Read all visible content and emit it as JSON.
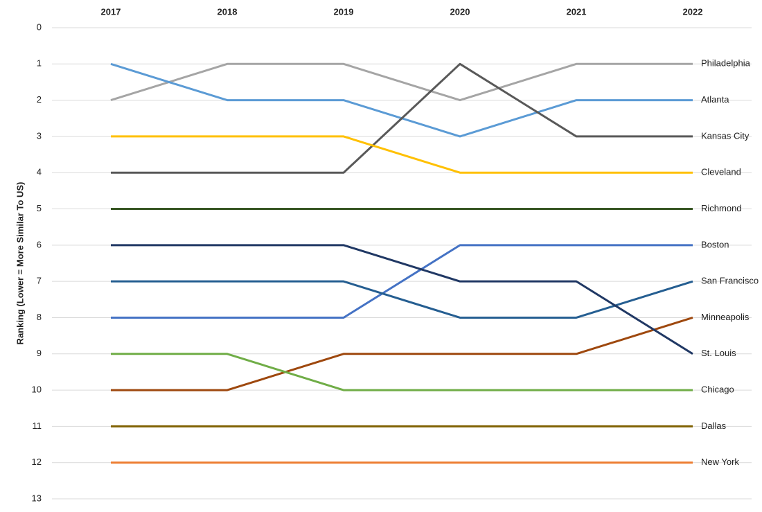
{
  "chart_data": {
    "type": "line",
    "y_label": "Ranking (Lower = More Similar To US)",
    "categories": [
      "2017",
      "2018",
      "2019",
      "2020",
      "2021",
      "2022"
    ],
    "series": [
      {
        "name": "Philadelphia",
        "color": "#a5a5a5",
        "values": [
          2,
          1,
          1,
          2,
          1,
          1
        ]
      },
      {
        "name": "Atlanta",
        "color": "#5b9bd5",
        "values": [
          1,
          2,
          2,
          3,
          2,
          2
        ]
      },
      {
        "name": "Kansas City",
        "color": "#595959",
        "values": [
          4,
          4,
          4,
          1,
          3,
          3
        ]
      },
      {
        "name": "Cleveland",
        "color": "#ffc000",
        "values": [
          3,
          3,
          3,
          4,
          4,
          4
        ]
      },
      {
        "name": "Richmond",
        "color": "#375623",
        "values": [
          5,
          5,
          5,
          5,
          5,
          5
        ]
      },
      {
        "name": "Boston",
        "color": "#4472c4",
        "values": [
          8,
          8,
          8,
          6,
          6,
          6
        ]
      },
      {
        "name": "San Francisco",
        "color": "#255e91",
        "values": [
          7,
          7,
          7,
          8,
          8,
          7
        ]
      },
      {
        "name": "Minneapolis",
        "color": "#9e480e",
        "values": [
          10,
          10,
          9,
          9,
          9,
          8
        ]
      },
      {
        "name": "St. Louis",
        "color": "#203864",
        "values": [
          6,
          6,
          6,
          7,
          7,
          9
        ]
      },
      {
        "name": "Chicago",
        "color": "#70ad47",
        "values": [
          9,
          9,
          10,
          10,
          10,
          10
        ]
      },
      {
        "name": "Dallas",
        "color": "#7f6000",
        "values": [
          11,
          11,
          11,
          11,
          11,
          11
        ]
      },
      {
        "name": "New York",
        "color": "#ed7d31",
        "values": [
          12,
          12,
          12,
          12,
          12,
          12
        ]
      }
    ],
    "ylim": [
      0,
      13
    ],
    "y_inverted": true,
    "yticks": [
      0,
      1,
      2,
      3,
      4,
      5,
      6,
      7,
      8,
      9,
      10,
      11,
      12,
      13
    ],
    "grid": true
  }
}
